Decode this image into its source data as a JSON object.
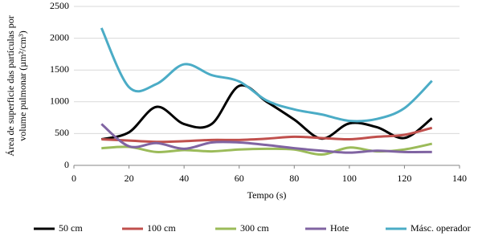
{
  "chart_data": {
    "type": "line",
    "x_label": "Tempo (s)",
    "y_label_lines": [
      "Área de superficie das partículas por",
      "volume pulmonar (µm²/cm³)"
    ],
    "x": [
      10,
      20,
      30,
      40,
      50,
      60,
      70,
      80,
      90,
      100,
      110,
      120,
      130
    ],
    "series": [
      {
        "name": "50 cm",
        "color": "#000000",
        "values": [
          410,
          520,
          920,
          650,
          650,
          1250,
          1000,
          720,
          420,
          660,
          600,
          430,
          740
        ]
      },
      {
        "name": "100 cm",
        "color": "#c0504d",
        "values": [
          410,
          390,
          370,
          380,
          400,
          400,
          420,
          450,
          430,
          410,
          450,
          480,
          590
        ]
      },
      {
        "name": "300 cm",
        "color": "#9bbb59",
        "values": [
          270,
          290,
          210,
          240,
          220,
          250,
          260,
          250,
          170,
          280,
          220,
          250,
          340
        ]
      },
      {
        "name": "Hote",
        "color": "#8064a2",
        "values": [
          650,
          300,
          350,
          260,
          360,
          360,
          320,
          270,
          230,
          200,
          230,
          210,
          210
        ]
      },
      {
        "name": "Másc. operador",
        "color": "#4bacc6",
        "values": [
          2160,
          1230,
          1280,
          1590,
          1420,
          1320,
          1020,
          880,
          800,
          700,
          730,
          900,
          1330
        ]
      }
    ],
    "xlim": [
      0,
      140
    ],
    "xticks": [
      0,
      20,
      40,
      60,
      80,
      100,
      120,
      140
    ],
    "ylim": [
      0,
      2500
    ],
    "yticks": [
      0,
      500,
      1000,
      1500,
      2000,
      2500
    ],
    "grid": true,
    "legend": "bottom"
  }
}
